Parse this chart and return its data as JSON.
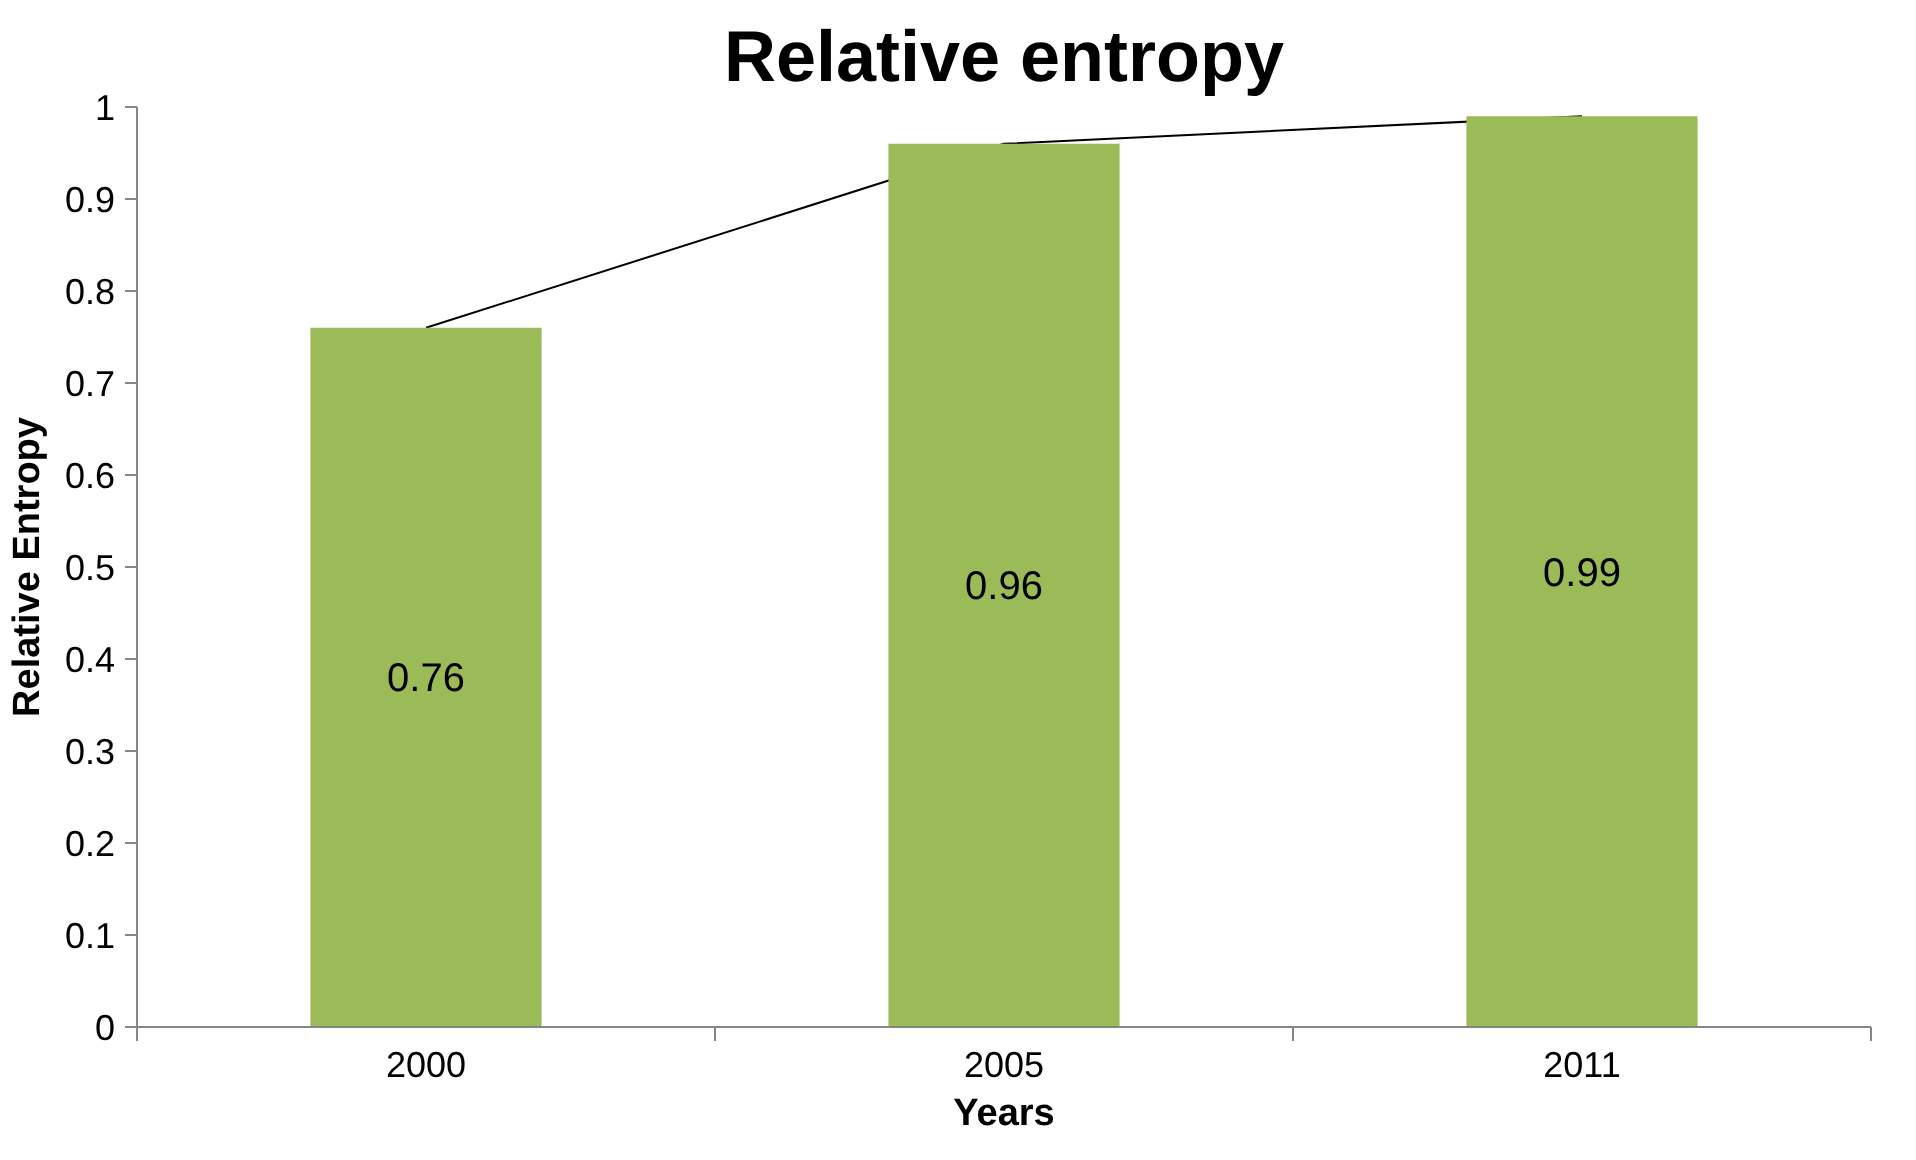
{
  "chart_data": {
    "type": "bar",
    "title": "Relative entropy",
    "xlabel": "Years",
    "ylabel": "Relative Entropy",
    "categories": [
      "2000",
      "2005",
      "2011"
    ],
    "series": [
      {
        "color": "#9bbb59",
        "values": [
          0.76,
          0.96,
          0.99
        ],
        "value_labels": [
          "0.76",
          "0.96",
          "0.99"
        ]
      },
      {
        "type": "line",
        "color": "#000000",
        "values": [
          0.76,
          0.96,
          0.99
        ]
      }
    ],
    "ylim": [
      0,
      1
    ],
    "yticks": [
      0,
      0.1,
      0.2,
      0.3,
      0.4,
      0.5,
      0.6,
      0.7,
      0.8,
      0.9,
      1
    ],
    "grid": false,
    "marker": "none",
    "line_style": "solid"
  }
}
